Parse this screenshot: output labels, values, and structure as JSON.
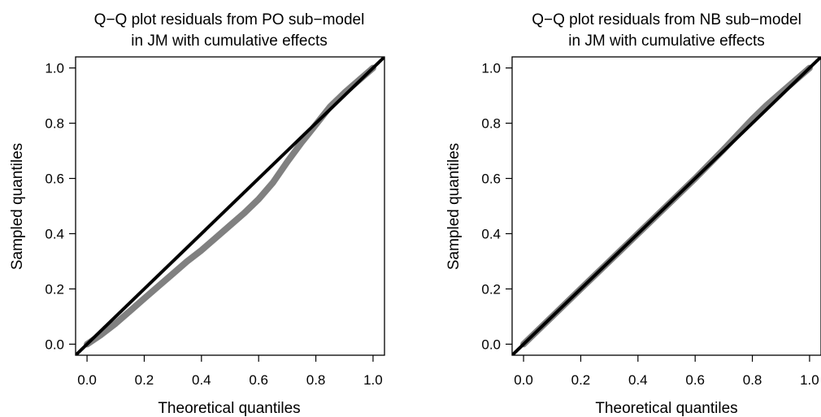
{
  "chart_data": [
    {
      "type": "line",
      "title_lines": [
        "Q−Q plot residuals from PO sub−model",
        "in JM with cumulative effects"
      ],
      "xlabel": "Theoretical quantiles",
      "ylabel": "Sampled quantiles",
      "xlim": [
        -0.04,
        1.04
      ],
      "ylim": [
        -0.04,
        1.04
      ],
      "xticks": [
        0.0,
        0.2,
        0.4,
        0.6,
        0.8,
        1.0
      ],
      "yticks": [
        0.0,
        0.2,
        0.4,
        0.6,
        0.8,
        1.0
      ],
      "xtick_labels": [
        "0.0",
        "0.2",
        "0.4",
        "0.6",
        "0.8",
        "1.0"
      ],
      "ytick_labels": [
        "0.0",
        "0.2",
        "0.4",
        "0.6",
        "0.8",
        "1.0"
      ],
      "grid": false,
      "series": [
        {
          "color": "#808080",
          "x": [
            0.0,
            0.05,
            0.1,
            0.15,
            0.2,
            0.25,
            0.3,
            0.35,
            0.4,
            0.45,
            0.5,
            0.55,
            0.6,
            0.65,
            0.7,
            0.75,
            0.8,
            0.85,
            0.9,
            0.95,
            1.0
          ],
          "y": [
            0.0,
            0.035,
            0.075,
            0.12,
            0.165,
            0.21,
            0.255,
            0.3,
            0.34,
            0.385,
            0.43,
            0.475,
            0.525,
            0.585,
            0.66,
            0.73,
            0.795,
            0.86,
            0.91,
            0.955,
            1.0
          ]
        }
      ],
      "reference_line": {
        "color": "#000000",
        "x": [
          -0.04,
          1.04
        ],
        "y": [
          -0.04,
          1.04
        ]
      }
    },
    {
      "type": "line",
      "title_lines": [
        "Q−Q plot residuals from NB sub−model",
        "in JM with cumulative effects"
      ],
      "xlabel": "Theoretical quantiles",
      "ylabel": "Sampled quantiles",
      "xlim": [
        -0.04,
        1.04
      ],
      "ylim": [
        -0.04,
        1.04
      ],
      "xticks": [
        0.0,
        0.2,
        0.4,
        0.6,
        0.8,
        1.0
      ],
      "yticks": [
        0.0,
        0.2,
        0.4,
        0.6,
        0.8,
        1.0
      ],
      "xtick_labels": [
        "0.0",
        "0.2",
        "0.4",
        "0.6",
        "0.8",
        "1.0"
      ],
      "ytick_labels": [
        "0.0",
        "0.2",
        "0.4",
        "0.6",
        "0.8",
        "1.0"
      ],
      "grid": false,
      "series": [
        {
          "color": "#808080",
          "x": [
            0.0,
            0.1,
            0.2,
            0.3,
            0.4,
            0.5,
            0.6,
            0.7,
            0.75,
            0.8,
            0.85,
            0.9,
            0.95,
            1.0
          ],
          "y": [
            0.0,
            0.1,
            0.2,
            0.3,
            0.4,
            0.5,
            0.6,
            0.705,
            0.76,
            0.815,
            0.865,
            0.91,
            0.955,
            1.0
          ]
        }
      ],
      "reference_line": {
        "color": "#000000",
        "x": [
          -0.04,
          1.04
        ],
        "y": [
          -0.04,
          1.04
        ]
      }
    }
  ]
}
